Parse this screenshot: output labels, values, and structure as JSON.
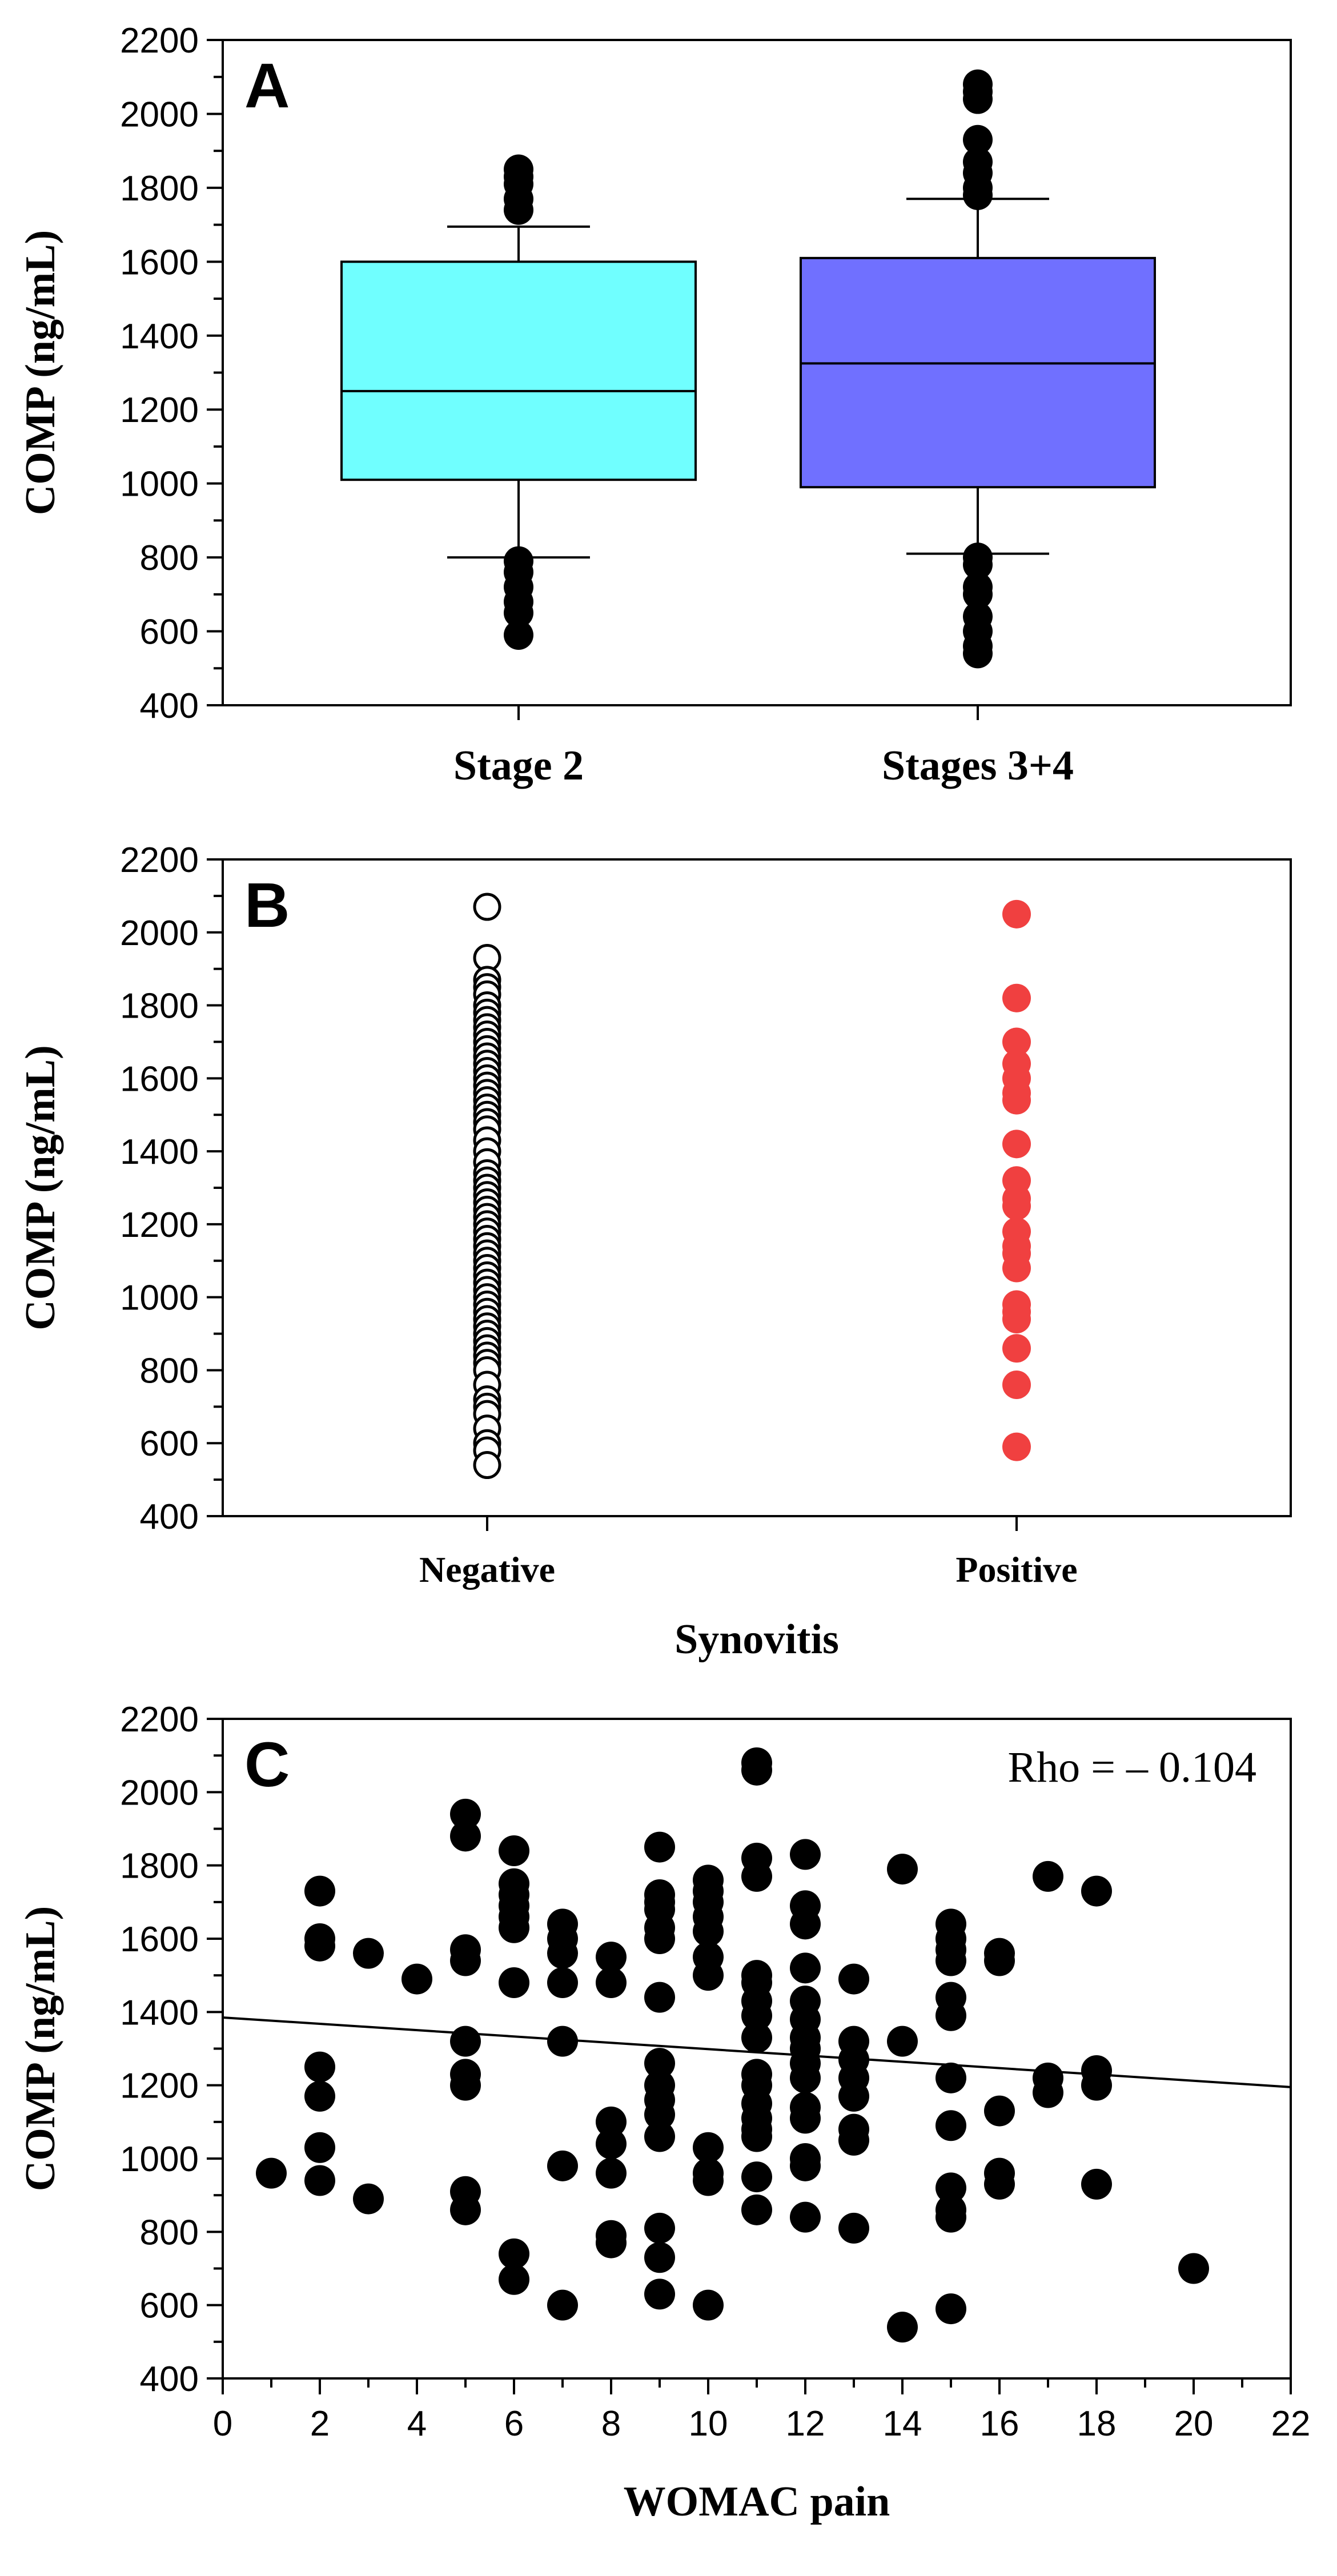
{
  "chart_data": [
    {
      "type": "box",
      "panel_label": "A",
      "ylabel": "COMP (ng/mL)",
      "ylim": [
        400,
        2200
      ],
      "yticks": [
        400,
        600,
        800,
        1000,
        1200,
        1400,
        1600,
        1800,
        2000,
        2200
      ],
      "categories": [
        "Stage 2",
        "Stages 3+4"
      ],
      "colors": [
        "#70FFFF",
        "#7070FF"
      ],
      "boxes": [
        {
          "name": "Stage 2",
          "q1": 1010,
          "median": 1250,
          "q3": 1600,
          "whisker_low": 800,
          "whisker_high": 1695,
          "outliers": [
            1850,
            1830,
            1810,
            1770,
            1740,
            790,
            760,
            720,
            680,
            650,
            590
          ]
        },
        {
          "name": "Stages 3+4",
          "q1": 990,
          "median": 1325,
          "q3": 1610,
          "whisker_low": 810,
          "whisker_high": 1770,
          "outliers": [
            2080,
            2060,
            2040,
            1930,
            1870,
            1840,
            1800,
            1780,
            800,
            780,
            720,
            700,
            640,
            600,
            560,
            540
          ]
        }
      ]
    },
    {
      "type": "scatter",
      "panel_label": "B",
      "ylabel": "COMP (ng/mL)",
      "xlabel": "Synovitis",
      "ylim": [
        400,
        2200
      ],
      "yticks": [
        400,
        600,
        800,
        1000,
        1200,
        1400,
        1600,
        1800,
        2000,
        2200
      ],
      "categories": [
        "Negative",
        "Positive"
      ],
      "series": [
        {
          "name": "Negative",
          "marker": "open-circle",
          "color": "#000000",
          "values": [
            2070,
            1930,
            1870,
            1850,
            1830,
            1800,
            1780,
            1760,
            1740,
            1720,
            1700,
            1680,
            1660,
            1640,
            1620,
            1600,
            1580,
            1560,
            1540,
            1520,
            1500,
            1480,
            1460,
            1430,
            1400,
            1370,
            1340,
            1320,
            1300,
            1280,
            1260,
            1240,
            1220,
            1200,
            1180,
            1160,
            1140,
            1120,
            1100,
            1080,
            1060,
            1040,
            1020,
            1000,
            980,
            960,
            940,
            920,
            900,
            880,
            860,
            840,
            820,
            800,
            760,
            720,
            700,
            680,
            640,
            600,
            580,
            540
          ]
        },
        {
          "name": "Positive",
          "marker": "filled-circle",
          "color": "#F04040",
          "values": [
            2050,
            1820,
            1700,
            1640,
            1600,
            1560,
            1540,
            1420,
            1320,
            1270,
            1250,
            1180,
            1140,
            1120,
            1080,
            980,
            960,
            940,
            860,
            760,
            590
          ]
        }
      ]
    },
    {
      "type": "scatter",
      "panel_label": "C",
      "ylabel": "COMP (ng/mL)",
      "xlabel": "WOMAC pain",
      "xlim": [
        0,
        22
      ],
      "ylim": [
        400,
        2200
      ],
      "xticks": [
        0,
        2,
        4,
        6,
        8,
        10,
        12,
        14,
        16,
        18,
        20,
        22
      ],
      "yticks": [
        400,
        600,
        800,
        1000,
        1200,
        1400,
        1600,
        1800,
        2000,
        2200
      ],
      "annotation": "Rho = – 0.104",
      "regression_line": {
        "x": [
          0,
          22
        ],
        "y": [
          1385,
          1195
        ]
      },
      "points": [
        [
          1,
          960
        ],
        [
          2,
          1730
        ],
        [
          2,
          1600
        ],
        [
          2,
          1580
        ],
        [
          2,
          1250
        ],
        [
          2,
          1170
        ],
        [
          2,
          1030
        ],
        [
          2,
          940
        ],
        [
          3,
          1560
        ],
        [
          3,
          890
        ],
        [
          4,
          1490
        ],
        [
          5,
          1940
        ],
        [
          5,
          1880
        ],
        [
          5,
          1570
        ],
        [
          5,
          1540
        ],
        [
          5,
          1320
        ],
        [
          5,
          1230
        ],
        [
          5,
          1200
        ],
        [
          5,
          910
        ],
        [
          5,
          860
        ],
        [
          6,
          1840
        ],
        [
          6,
          1750
        ],
        [
          6,
          1720
        ],
        [
          6,
          1690
        ],
        [
          6,
          1660
        ],
        [
          6,
          1630
        ],
        [
          6,
          1480
        ],
        [
          6,
          740
        ],
        [
          6,
          670
        ],
        [
          7,
          1640
        ],
        [
          7,
          1600
        ],
        [
          7,
          1560
        ],
        [
          7,
          1480
        ],
        [
          7,
          1320
        ],
        [
          7,
          980
        ],
        [
          7,
          600
        ],
        [
          8,
          1550
        ],
        [
          8,
          1480
        ],
        [
          8,
          1100
        ],
        [
          8,
          1040
        ],
        [
          8,
          960
        ],
        [
          8,
          790
        ],
        [
          8,
          770
        ],
        [
          9,
          1850
        ],
        [
          9,
          1720
        ],
        [
          9,
          1700
        ],
        [
          9,
          1680
        ],
        [
          9,
          1630
        ],
        [
          9,
          1600
        ],
        [
          9,
          1440
        ],
        [
          9,
          1260
        ],
        [
          9,
          1200
        ],
        [
          9,
          1160
        ],
        [
          9,
          1120
        ],
        [
          9,
          1060
        ],
        [
          9,
          810
        ],
        [
          9,
          730
        ],
        [
          9,
          630
        ],
        [
          10,
          1760
        ],
        [
          10,
          1730
        ],
        [
          10,
          1700
        ],
        [
          10,
          1660
        ],
        [
          10,
          1620
        ],
        [
          10,
          1550
        ],
        [
          10,
          1500
        ],
        [
          10,
          1030
        ],
        [
          10,
          960
        ],
        [
          10,
          940
        ],
        [
          10,
          600
        ],
        [
          11,
          2080
        ],
        [
          11,
          2060
        ],
        [
          11,
          1820
        ],
        [
          11,
          1770
        ],
        [
          11,
          1500
        ],
        [
          11,
          1480
        ],
        [
          11,
          1430
        ],
        [
          11,
          1390
        ],
        [
          11,
          1330
        ],
        [
          11,
          1230
        ],
        [
          11,
          1200
        ],
        [
          11,
          1150
        ],
        [
          11,
          1110
        ],
        [
          11,
          1080
        ],
        [
          11,
          1060
        ],
        [
          11,
          950
        ],
        [
          11,
          860
        ],
        [
          12,
          1830
        ],
        [
          12,
          1690
        ],
        [
          12,
          1640
        ],
        [
          12,
          1520
        ],
        [
          12,
          1430
        ],
        [
          12,
          1380
        ],
        [
          12,
          1330
        ],
        [
          12,
          1300
        ],
        [
          12,
          1260
        ],
        [
          12,
          1220
        ],
        [
          12,
          1140
        ],
        [
          12,
          1110
        ],
        [
          12,
          1000
        ],
        [
          12,
          980
        ],
        [
          12,
          840
        ],
        [
          13,
          1490
        ],
        [
          13,
          1320
        ],
        [
          13,
          1270
        ],
        [
          13,
          1220
        ],
        [
          13,
          1170
        ],
        [
          13,
          1080
        ],
        [
          13,
          1050
        ],
        [
          13,
          810
        ],
        [
          14,
          1790
        ],
        [
          14,
          1320
        ],
        [
          14,
          540
        ],
        [
          15,
          1640
        ],
        [
          15,
          1600
        ],
        [
          15,
          1570
        ],
        [
          15,
          1540
        ],
        [
          15,
          1440
        ],
        [
          15,
          1390
        ],
        [
          15,
          1220
        ],
        [
          15,
          1090
        ],
        [
          15,
          920
        ],
        [
          15,
          860
        ],
        [
          15,
          840
        ],
        [
          15,
          590
        ],
        [
          16,
          1560
        ],
        [
          16,
          1540
        ],
        [
          16,
          1130
        ],
        [
          16,
          960
        ],
        [
          16,
          930
        ],
        [
          17,
          1770
        ],
        [
          17,
          1220
        ],
        [
          17,
          1180
        ],
        [
          18,
          1730
        ],
        [
          18,
          1240
        ],
        [
          18,
          1200
        ],
        [
          18,
          930
        ],
        [
          20,
          700
        ]
      ]
    }
  ]
}
